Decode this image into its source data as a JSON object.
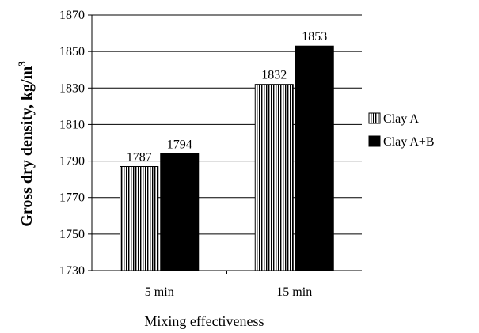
{
  "chart_data": {
    "type": "bar",
    "title": "",
    "xlabel": "Mixing effectiveness",
    "ylabel": "Gross dry density, kg/m",
    "ylabel_superscript": "3",
    "categories": [
      "5 min",
      "15 min"
    ],
    "series": [
      {
        "name": "Clay A",
        "values": [
          1787,
          1832
        ],
        "pattern": "vertical-stripes",
        "color": "#000000"
      },
      {
        "name": "Clay A+B",
        "values": [
          1794,
          1853
        ],
        "pattern": "solid",
        "color": "#000000"
      }
    ],
    "ylim": [
      1730,
      1870
    ],
    "yticks": [
      1730,
      1750,
      1770,
      1790,
      1810,
      1830,
      1850,
      1870
    ],
    "grid": true,
    "legend_position": "right"
  }
}
